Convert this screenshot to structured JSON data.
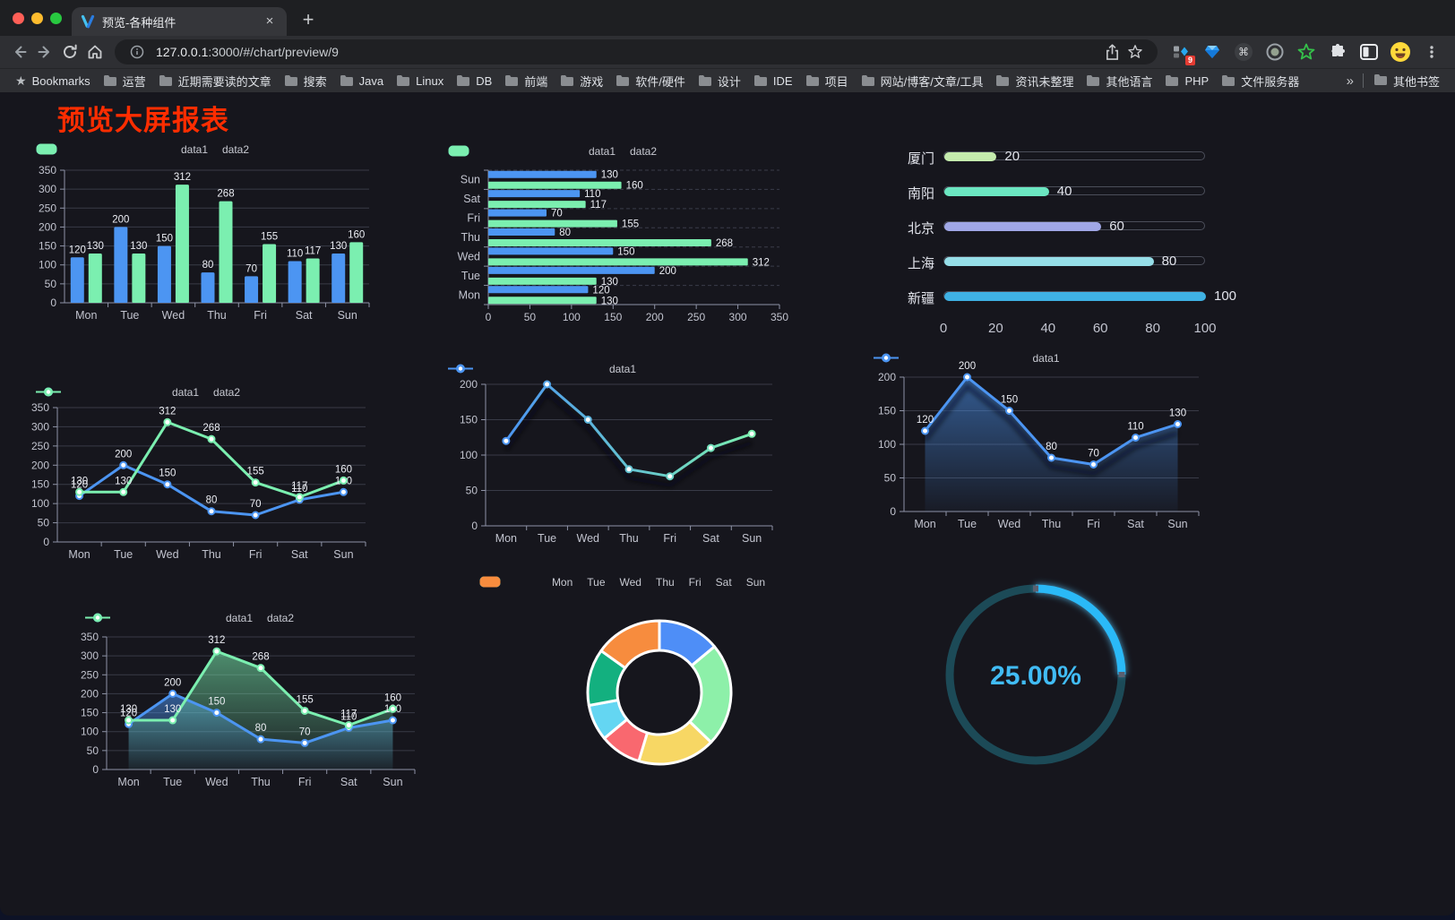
{
  "browser": {
    "tab": {
      "title": "预览-各种组件",
      "close": "×",
      "new_tab": "+"
    },
    "address": {
      "url_host": "127.0.0.1",
      "url_rest": ":3000/#/chart/preview/9"
    },
    "extensions_badge": "9",
    "bookmarks_bar": {
      "bookmarks_label": "Bookmarks",
      "folders": [
        "运营",
        "近期需要读的文章",
        "搜索",
        "Java",
        "Linux",
        "DB",
        "前端",
        "游戏",
        "软件/硬件",
        "设计",
        "IDE",
        "项目",
        "网站/博客/文章/工具",
        "资讯未整理",
        "其他语言",
        "PHP",
        "文件服务器"
      ],
      "overflow": "»",
      "other_bookmarks": "其他书签"
    }
  },
  "page": {
    "title": "预览大屏报表",
    "title_color": "#ff2d00"
  },
  "chart_data": [
    {
      "type": "bar",
      "title": "",
      "categories": [
        "Mon",
        "Tue",
        "Wed",
        "Thu",
        "Fri",
        "Sat",
        "Sun"
      ],
      "series": [
        {
          "name": "data1",
          "color": "#4C95F2",
          "values": [
            120,
            200,
            150,
            80,
            70,
            110,
            130
          ]
        },
        {
          "name": "data2",
          "color": "#7BEFB0",
          "values": [
            130,
            130,
            312,
            268,
            155,
            117,
            160
          ]
        }
      ],
      "ylim": [
        0,
        350
      ],
      "yticks": [
        0,
        50,
        100,
        150,
        200,
        250,
        300,
        350
      ],
      "value_labels": true,
      "legend_position": "top",
      "grid": true
    },
    {
      "type": "bar-horizontal",
      "title": "",
      "categories": [
        "Mon",
        "Tue",
        "Wed",
        "Thu",
        "Fri",
        "Sat",
        "Sun"
      ],
      "series": [
        {
          "name": "data1",
          "color": "#4C95F2",
          "values": [
            120,
            200,
            150,
            80,
            70,
            110,
            130
          ]
        },
        {
          "name": "data2",
          "color": "#7BEFB0",
          "values": [
            130,
            130,
            312,
            268,
            155,
            117,
            160
          ]
        }
      ],
      "xlim": [
        0,
        350
      ],
      "xticks": [
        0,
        50,
        100,
        150,
        200,
        250,
        300,
        350
      ],
      "value_labels": true,
      "legend_position": "top"
    },
    {
      "type": "progress-bars",
      "title": "",
      "items": [
        {
          "label": "厦门",
          "value": 20,
          "color": "#c4ebad"
        },
        {
          "label": "南阳",
          "value": 40,
          "color": "#6be6c1"
        },
        {
          "label": "北京",
          "value": 60,
          "color": "#a0a7e6"
        },
        {
          "label": "上海",
          "value": 80,
          "color": "#96dee8"
        },
        {
          "label": "新疆",
          "value": 100,
          "color": "#3fb1e3"
        }
      ],
      "xlim": [
        0,
        100
      ],
      "xticks": [
        0,
        20,
        40,
        60,
        80,
        100
      ]
    },
    {
      "type": "line",
      "title": "",
      "categories": [
        "Mon",
        "Tue",
        "Wed",
        "Thu",
        "Fri",
        "Sat",
        "Sun"
      ],
      "series": [
        {
          "name": "data1",
          "color": "#4C95F2",
          "values": [
            120,
            200,
            150,
            80,
            70,
            110,
            130
          ]
        },
        {
          "name": "data2",
          "color": "#7BEFB0",
          "values": [
            130,
            130,
            312,
            268,
            155,
            117,
            160
          ]
        }
      ],
      "ylim": [
        0,
        350
      ],
      "yticks": [
        0,
        50,
        100,
        150,
        200,
        250,
        300,
        350
      ],
      "value_labels": true,
      "legend_position": "top"
    },
    {
      "type": "line",
      "title": "",
      "categories": [
        "Mon",
        "Tue",
        "Wed",
        "Thu",
        "Fri",
        "Sat",
        "Sun"
      ],
      "series": [
        {
          "name": "data1",
          "gradient": [
            "#4C95F2",
            "#7BEFB0"
          ],
          "values": [
            120,
            200,
            150,
            80,
            70,
            110,
            130
          ]
        }
      ],
      "ylim": [
        0,
        200
      ],
      "yticks": [
        0,
        50,
        100,
        150,
        200
      ],
      "value_labels": false,
      "shadow": true,
      "legend_position": "top"
    },
    {
      "type": "area",
      "title": "",
      "categories": [
        "Mon",
        "Tue",
        "Wed",
        "Thu",
        "Fri",
        "Sat",
        "Sun"
      ],
      "series": [
        {
          "name": "data1",
          "color": "#4C95F2",
          "area": true,
          "values": [
            120,
            200,
            150,
            80,
            70,
            110,
            130
          ]
        }
      ],
      "ylim": [
        0,
        200
      ],
      "yticks": [
        0,
        50,
        100,
        150,
        200
      ],
      "value_labels": true,
      "shadow": true,
      "legend_position": "top"
    },
    {
      "type": "area",
      "title": "",
      "categories": [
        "Mon",
        "Tue",
        "Wed",
        "Thu",
        "Fri",
        "Sat",
        "Sun"
      ],
      "series": [
        {
          "name": "data1",
          "color": "#4C95F2",
          "area": true,
          "values": [
            120,
            200,
            150,
            80,
            70,
            110,
            130
          ]
        },
        {
          "name": "data2",
          "color": "#7BEFB0",
          "area": true,
          "values": [
            130,
            130,
            312,
            268,
            155,
            117,
            160
          ]
        }
      ],
      "ylim": [
        0,
        350
      ],
      "yticks": [
        0,
        50,
        100,
        150,
        200,
        250,
        300,
        350
      ],
      "value_labels": true,
      "legend_position": "top"
    },
    {
      "type": "pie",
      "title": "",
      "categories": [
        "Mon",
        "Tue",
        "Wed",
        "Thu",
        "Fri",
        "Sat",
        "Sun"
      ],
      "values": [
        120,
        200,
        150,
        80,
        70,
        110,
        130
      ],
      "colors": [
        "#4E8EF7",
        "#8DF0A9",
        "#F7D764",
        "#F9686F",
        "#64D6F2",
        "#13B07F",
        "#F78C3E"
      ],
      "donut": true,
      "legend_position": "top"
    },
    {
      "type": "gauge",
      "title": "",
      "percent": 25,
      "label": "25.00%",
      "color": "#29B9F7",
      "track_color": "#1C4A57",
      "text_color": "#41BCF5"
    }
  ]
}
